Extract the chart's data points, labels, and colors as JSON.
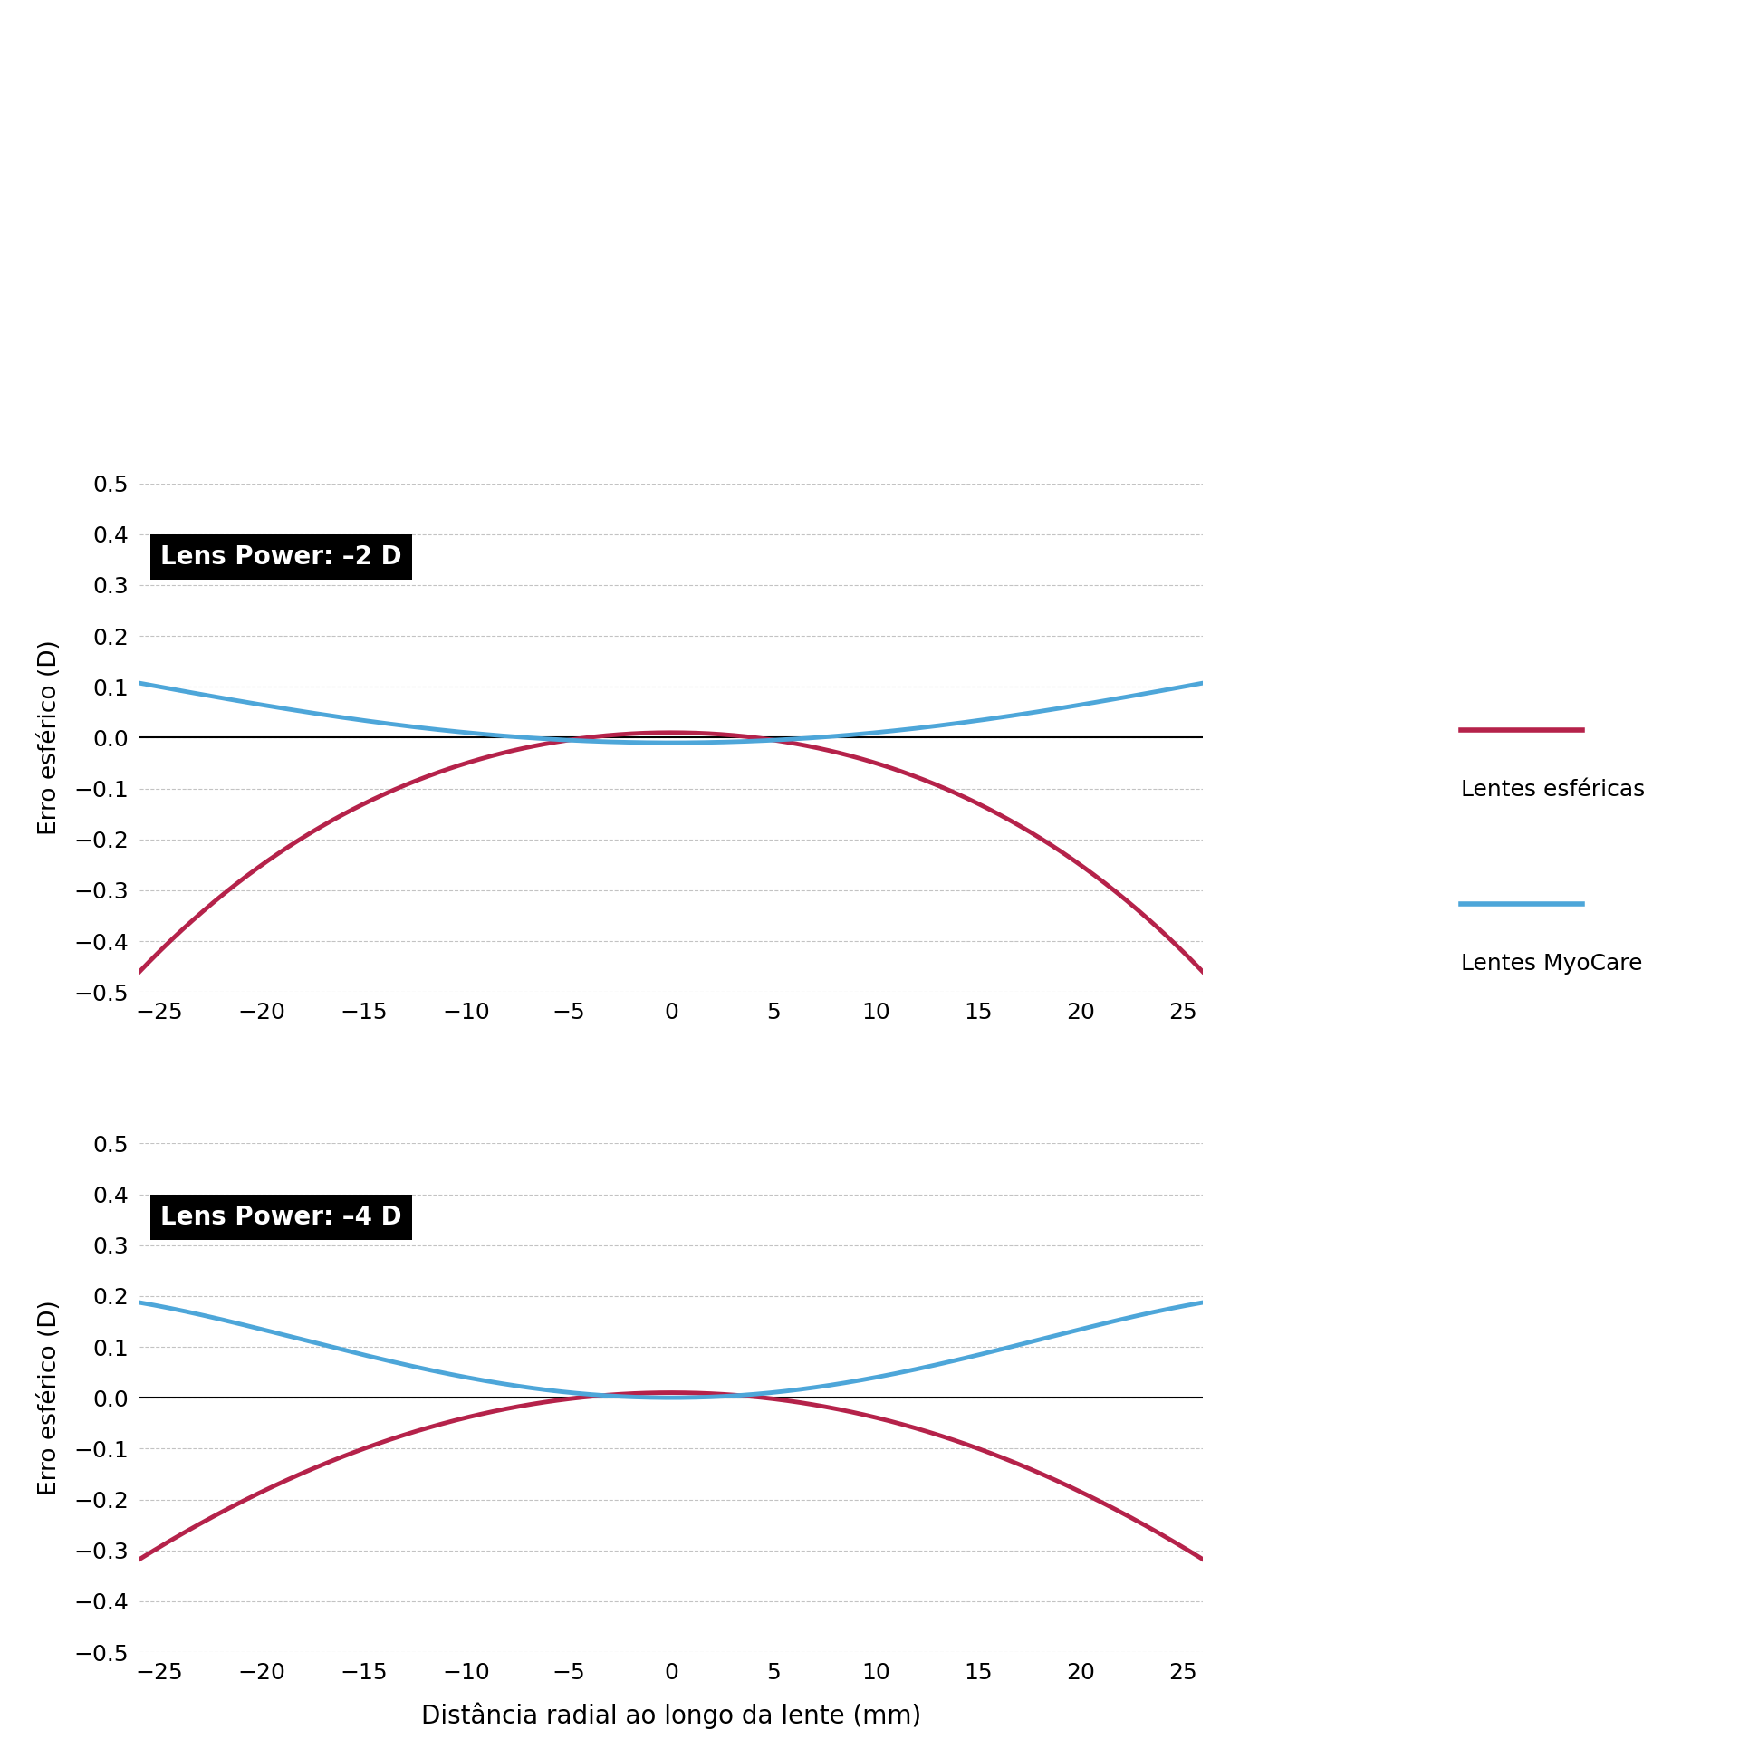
{
  "title_top": "Lens Power: –2 D",
  "title_bottom": "Lens Power: –4 D",
  "xlabel": "Distância radial ao longo da lente (mm)",
  "ylabel": "Erro esférico (D)",
  "x_ticks": [
    -25,
    -20,
    -15,
    -10,
    -5,
    0,
    5,
    10,
    15,
    20,
    25
  ],
  "ylim": [
    -0.5,
    0.5
  ],
  "y_ticks": [
    -0.5,
    -0.4,
    -0.3,
    -0.2,
    -0.1,
    0,
    0.1,
    0.2,
    0.3,
    0.4,
    0.5
  ],
  "red_color": "#b5224a",
  "blue_color": "#4da6d9",
  "legend_red": "Lentes esféricas",
  "legend_blue": "Lentes MyoCare",
  "background_color": "#ffffff",
  "grid_color": "#aaaaaa"
}
